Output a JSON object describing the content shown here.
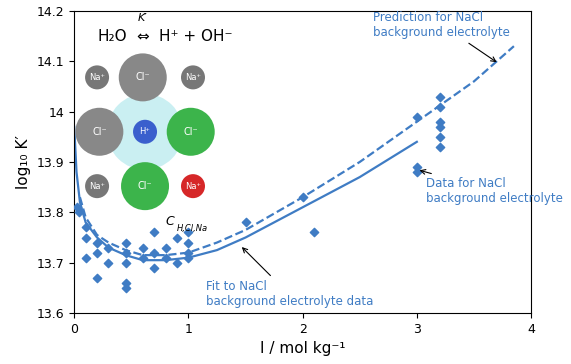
{
  "chart_data": {
    "type": "scatter",
    "x_label": "I / mol kg⁻¹",
    "y_label": "log₁₀ K′",
    "xlim": [
      0,
      4
    ],
    "xticks": [
      0,
      1,
      2,
      3,
      4
    ],
    "ylim": [
      13.6,
      14.2
    ],
    "yticks": [
      13.6,
      13.7,
      13.8,
      13.9,
      14,
      14.1,
      14.2
    ],
    "grid": false,
    "series": [
      {
        "name": "Data for NaCl\nbackground electrolyte",
        "type": "scatter",
        "marker": "diamond",
        "color": "#3f7cc4",
        "x": [
          0.02,
          0.04,
          0.1,
          0.1,
          0.1,
          0.2,
          0.2,
          0.2,
          0.3,
          0.3,
          0.45,
          0.45,
          0.45,
          0.45,
          0.45,
          0.6,
          0.6,
          0.7,
          0.7,
          0.7,
          0.8,
          0.8,
          0.9,
          0.9,
          1.0,
          1.0,
          1.0,
          1.0,
          1.5,
          2.0,
          2.1,
          3.0,
          3.0,
          3.0,
          3.2,
          3.2,
          3.2,
          3.2,
          3.2,
          3.2
        ],
        "values": [
          13.81,
          13.8,
          13.77,
          13.75,
          13.71,
          13.74,
          13.72,
          13.67,
          13.73,
          13.7,
          13.74,
          13.72,
          13.7,
          13.66,
          13.65,
          13.73,
          13.71,
          13.76,
          13.72,
          13.69,
          13.73,
          13.71,
          13.75,
          13.7,
          13.76,
          13.74,
          13.72,
          13.71,
          13.78,
          13.83,
          13.76,
          13.99,
          13.88,
          13.89,
          14.03,
          14.01,
          13.98,
          13.97,
          13.95,
          13.93
        ]
      },
      {
        "name": "Fit to NaCl\nbackground electrolyte data",
        "type": "line",
        "line_style": "solid",
        "color": "#3f7cc4",
        "x": [
          0,
          0.02,
          0.05,
          0.1,
          0.2,
          0.3,
          0.45,
          0.6,
          0.8,
          1.0,
          1.25,
          1.5,
          2.0,
          2.5,
          3.0
        ],
        "values": [
          13.97,
          13.88,
          13.82,
          13.78,
          13.75,
          13.73,
          13.715,
          13.705,
          13.705,
          13.71,
          13.725,
          13.75,
          13.81,
          13.87,
          13.94
        ]
      },
      {
        "name": "Prediction for NaCl\nbackground electrolyte",
        "type": "line",
        "line_style": "dashed",
        "color": "#3f7cc4",
        "x": [
          0.05,
          0.1,
          0.2,
          0.3,
          0.45,
          0.6,
          0.8,
          1.0,
          1.25,
          1.5,
          2.0,
          2.5,
          3.0,
          3.5,
          3.85
        ],
        "values": [
          13.83,
          13.79,
          13.755,
          13.74,
          13.725,
          13.715,
          13.715,
          13.72,
          13.74,
          13.765,
          13.83,
          13.9,
          13.98,
          14.06,
          14.13
        ]
      }
    ],
    "inset": {
      "equation_left": "H₂O",
      "equation_arrow": "⇔",
      "equation_right": "H⁺ + OH⁻",
      "constant": "K′",
      "ions": [
        "Na⁺",
        "Cl⁻",
        "Na⁺",
        "Cl⁻",
        "H⁺",
        "Cl⁻",
        "Na⁺",
        "Cl⁻",
        "Na⁺"
      ],
      "label": "C",
      "label_subscript": "H,Cl,Na"
    }
  }
}
